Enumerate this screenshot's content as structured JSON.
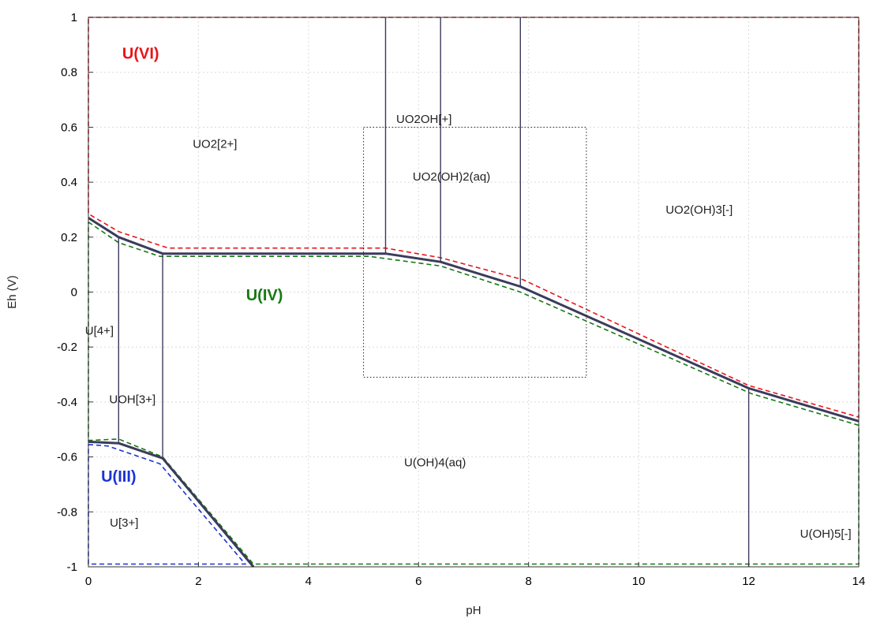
{
  "chart_data": {
    "type": "line",
    "xlabel": "pH",
    "ylabel": "Eh (V)",
    "xlim": [
      0,
      14
    ],
    "ylim": [
      -1,
      1
    ],
    "xticks": [
      "0",
      "2",
      "4",
      "6",
      "8",
      "10",
      "12",
      "14"
    ],
    "yticks": [
      "-1",
      "-0.8",
      "-0.6",
      "-0.4",
      "-0.2",
      "0",
      "0.2",
      "0.4",
      "0.6",
      "0.8",
      "1"
    ],
    "grid": true,
    "species_labels": [
      {
        "text": "UO2[2+]",
        "x": 2.3,
        "y": 0.54
      },
      {
        "text": "UO2OH[+]",
        "x": 6.1,
        "y": 0.63
      },
      {
        "text": "UO2(OH)2(aq)",
        "x": 6.6,
        "y": 0.42
      },
      {
        "text": "UO2(OH)3[-]",
        "x": 11.1,
        "y": 0.3
      },
      {
        "text": "U[4+]",
        "x": 0.2,
        "y": -0.14
      },
      {
        "text": "UOH[3+]",
        "x": 0.8,
        "y": -0.39
      },
      {
        "text": "U(OH)4(aq)",
        "x": 6.3,
        "y": -0.62
      },
      {
        "text": "U[3+]",
        "x": 0.65,
        "y": -0.84
      },
      {
        "text": "U(OH)5[-]",
        "x": 13.4,
        "y": -0.88
      }
    ],
    "oxidation_states": [
      {
        "text": "U(VI)",
        "x": 0.95,
        "y": 0.87,
        "color": "#e8141b"
      },
      {
        "text": "U(IV)",
        "x": 3.2,
        "y": -0.01,
        "color": "#157a12"
      },
      {
        "text": "U(III)",
        "x": 0.55,
        "y": -0.67,
        "color": "#1b33d6"
      }
    ],
    "boundaries": [
      {
        "name": "u6_u4",
        "points": [
          [
            0,
            0.27
          ],
          [
            0.55,
            0.2
          ],
          [
            1.35,
            0.14
          ],
          [
            5.4,
            0.14
          ],
          [
            6.4,
            0.11
          ],
          [
            7.85,
            0.02
          ],
          [
            12.0,
            -0.35
          ],
          [
            14,
            -0.47
          ]
        ]
      },
      {
        "name": "u4_u3",
        "points": [
          [
            0,
            -0.545
          ],
          [
            0.55,
            -0.55
          ],
          [
            1.35,
            -0.605
          ],
          [
            3.0,
            -1.0
          ]
        ]
      },
      {
        "name": "u4p_uoh3p",
        "points": [
          [
            0.55,
            0.2
          ],
          [
            0.55,
            -0.55
          ]
        ]
      },
      {
        "name": "uoh3p_uoh4",
        "points": [
          [
            1.35,
            0.14
          ],
          [
            1.35,
            -0.605
          ]
        ]
      },
      {
        "name": "uo2_uo2oh",
        "points": [
          [
            5.4,
            1.0
          ],
          [
            5.4,
            0.14
          ]
        ]
      },
      {
        "name": "uo2oh_uo2oh2",
        "points": [
          [
            6.4,
            1.0
          ],
          [
            6.4,
            0.11
          ]
        ]
      },
      {
        "name": "uo2oh2_uo2oh3",
        "points": [
          [
            7.85,
            1.0
          ],
          [
            7.85,
            0.02
          ]
        ]
      },
      {
        "name": "uoh4_uoh5",
        "points": [
          [
            12.0,
            -0.35
          ],
          [
            12.0,
            -1.0
          ]
        ]
      }
    ],
    "regions": [
      {
        "name": "u6-region",
        "color": "#e8141b",
        "points": [
          [
            0,
            1
          ],
          [
            14,
            1
          ],
          [
            14,
            -0.455
          ],
          [
            12,
            -0.34
          ],
          [
            7.9,
            0.045
          ],
          [
            6.4,
            0.125
          ],
          [
            5.4,
            0.16
          ],
          [
            1.45,
            0.16
          ],
          [
            0.55,
            0.22
          ],
          [
            0,
            0.285
          ],
          [
            0,
            1
          ]
        ]
      },
      {
        "name": "u4-region",
        "color": "#157a12",
        "points": [
          [
            0,
            0.255
          ],
          [
            0.55,
            0.18
          ],
          [
            1.3,
            0.13
          ],
          [
            5.1,
            0.13
          ],
          [
            6.4,
            0.095
          ],
          [
            7.85,
            0.0
          ],
          [
            12.05,
            -0.37
          ],
          [
            14,
            -0.485
          ],
          [
            14,
            -0.99
          ],
          [
            3.0,
            -0.99
          ],
          [
            1.35,
            -0.6
          ],
          [
            0.55,
            -0.535
          ],
          [
            0,
            -0.54
          ],
          [
            0,
            0.255
          ]
        ]
      },
      {
        "name": "u3-region",
        "color": "#1b33d6",
        "points": [
          [
            0,
            -0.555
          ],
          [
            0.35,
            -0.56
          ],
          [
            1.3,
            -0.625
          ],
          [
            2.85,
            -0.99
          ],
          [
            0,
            -0.99
          ],
          [
            0,
            -0.555
          ]
        ]
      }
    ],
    "zoom_box": {
      "x": [
        5.0,
        9.05
      ],
      "y": [
        -0.31,
        0.6
      ]
    }
  }
}
